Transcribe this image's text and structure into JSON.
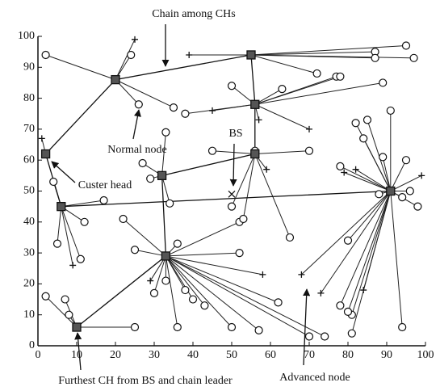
{
  "chart_data": {
    "type": "scatter",
    "xlim": [
      0,
      100
    ],
    "ylim": [
      0,
      100
    ],
    "xticks": [
      0,
      10,
      20,
      30,
      40,
      50,
      60,
      70,
      80,
      90,
      100
    ],
    "yticks": [
      0,
      10,
      20,
      30,
      40,
      50,
      60,
      70,
      80,
      90,
      100
    ],
    "grid": false,
    "cluster_heads": {
      "x": [
        2,
        20,
        55,
        56,
        32,
        56,
        6,
        33,
        10,
        91
      ],
      "y": [
        62,
        86,
        94,
        78,
        55,
        62,
        45,
        29,
        6,
        50
      ]
    },
    "chain": {
      "x": [
        91,
        6,
        2,
        20,
        55,
        56,
        56,
        32,
        33,
        10
      ],
      "y": [
        50,
        45,
        62,
        86,
        94,
        78,
        62,
        55,
        29,
        6
      ]
    },
    "normal_nodes": {
      "x": [
        2,
        24,
        26,
        35,
        38,
        50,
        63,
        72,
        77,
        78,
        87,
        87,
        95,
        33,
        45,
        56,
        70,
        27,
        29,
        34,
        50,
        52,
        53,
        65,
        4,
        12,
        22,
        17,
        5,
        11,
        25,
        36,
        52,
        30,
        33,
        38,
        40,
        43,
        36,
        50,
        57,
        62,
        70,
        74,
        2,
        7,
        8,
        25,
        78,
        81,
        80,
        81,
        80,
        78,
        82,
        85,
        84,
        88,
        89,
        89,
        91,
        97,
        94,
        96,
        98,
        94,
        95
      ],
      "y": [
        94,
        94,
        78,
        77,
        75,
        84,
        83,
        88,
        87,
        87,
        95,
        93,
        97,
        69,
        63,
        63,
        63,
        59,
        54,
        46,
        45,
        40,
        41,
        35,
        53,
        40,
        41,
        47,
        33,
        28,
        31,
        33,
        30,
        17,
        21,
        18,
        15,
        13,
        6,
        6,
        5,
        14,
        3,
        3,
        16,
        15,
        10,
        6,
        13,
        10,
        11,
        4,
        34,
        58,
        72,
        73,
        67,
        49,
        61,
        85,
        76,
        93,
        48,
        50,
        45,
        6,
        60
      ]
    },
    "advanced_nodes": {
      "x": [
        25,
        39,
        45,
        57,
        70,
        59,
        68,
        58,
        9,
        99,
        79,
        73,
        29,
        84,
        82,
        1
      ],
      "y": [
        99,
        94,
        76,
        73,
        70,
        57,
        23,
        23,
        26,
        55,
        56,
        17,
        21,
        18,
        57,
        67
      ]
    },
    "bs": {
      "x": [
        50
      ],
      "y": [
        49
      ]
    },
    "annotations": [
      "Chain among CHs",
      "Normal node",
      "BS",
      "Custer head",
      "Advanced node",
      "Furthest CH from BS and chain leader"
    ]
  }
}
